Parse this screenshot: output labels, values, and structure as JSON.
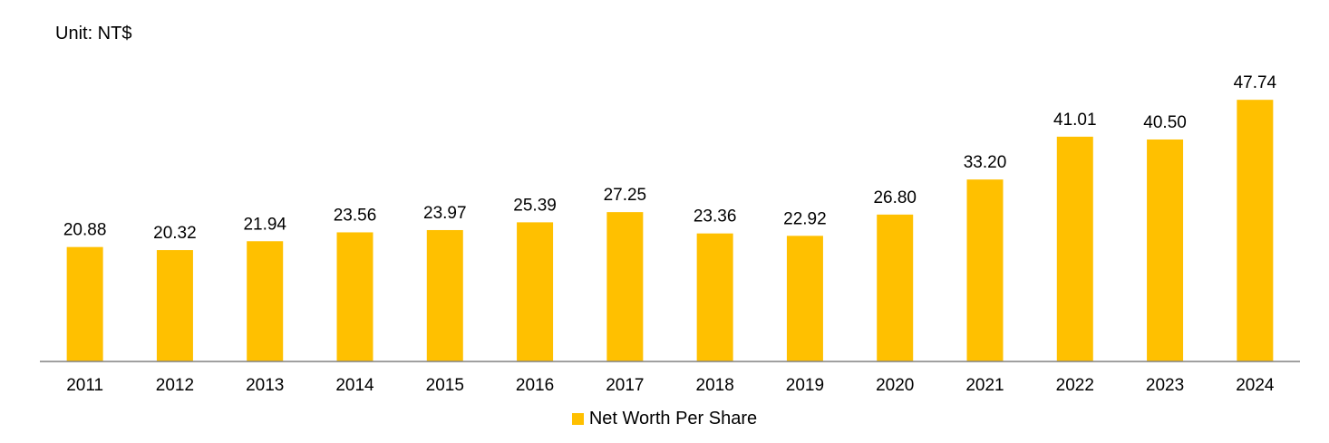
{
  "unit_label": "Unit: NT$",
  "chart_data": {
    "type": "bar",
    "categories": [
      "2011",
      "2012",
      "2013",
      "2014",
      "2015",
      "2016",
      "2017",
      "2018",
      "2019",
      "2020",
      "2021",
      "2022",
      "2023",
      "2024"
    ],
    "series": [
      {
        "name": "Net Worth Per Share",
        "color": "#FFC000",
        "values": [
          20.88,
          20.32,
          21.94,
          23.56,
          23.97,
          25.39,
          27.25,
          23.36,
          22.92,
          26.8,
          33.2,
          41.01,
          40.5,
          47.74
        ],
        "labels": [
          "20.88",
          "20.32",
          "21.94",
          "23.56",
          "23.97",
          "25.39",
          "27.25",
          "23.36",
          "22.92",
          "26.80",
          "33.20",
          "41.01",
          "40.50",
          "47.74"
        ]
      }
    ],
    "ylim": [
      0,
      50
    ],
    "grid": false,
    "legend_position": "bottom-center",
    "axis_color": "#808080"
  }
}
